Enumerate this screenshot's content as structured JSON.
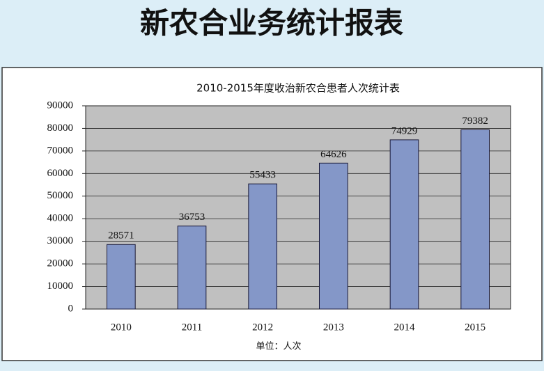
{
  "header": {
    "title": "新农合业务统计报表"
  },
  "chart_data": {
    "type": "bar",
    "title": "2010-2015年度收治新农合患者人次统计表",
    "categories": [
      "2010",
      "2011",
      "2012",
      "2013",
      "2014",
      "2015"
    ],
    "values": [
      28571,
      36753,
      55433,
      64626,
      74929,
      79382
    ],
    "color": "#8497c8",
    "x_label": "单位：人次",
    "ylim": [
      0,
      90000
    ],
    "yticks": [
      0,
      10000,
      20000,
      30000,
      40000,
      50000,
      60000,
      70000,
      80000,
      90000
    ],
    "grid": true,
    "plot_background": "#c0c0c0"
  }
}
